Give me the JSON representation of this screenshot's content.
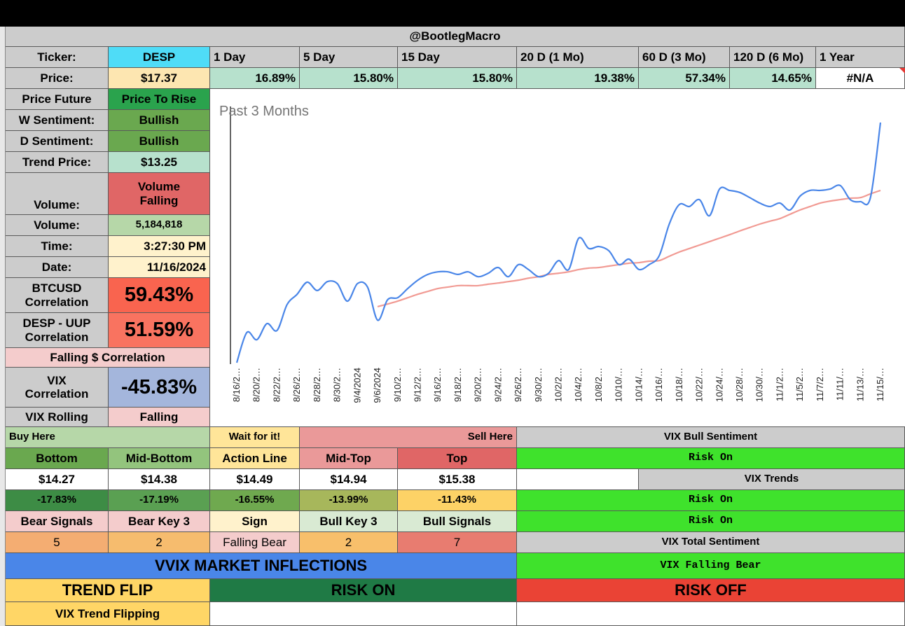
{
  "header": {
    "title": "@BootlegMacro"
  },
  "ticker": {
    "label": "Ticker:",
    "value": "DESP"
  },
  "price": {
    "label": "Price:",
    "value": "$17.37"
  },
  "periods": {
    "labels": [
      "1 Day",
      "5 Day",
      "15 Day",
      "20 D (1 Mo)",
      "60 D (3 Mo)",
      "120 D (6 Mo)",
      "1 Year"
    ],
    "values": [
      "16.89%",
      "15.80%",
      "15.80%",
      "19.38%",
      "57.34%",
      "14.65%",
      "#N/A"
    ]
  },
  "stats": [
    {
      "label": "Price Future",
      "value": "Price To Rise"
    },
    {
      "label": "W Sentiment:",
      "value": "Bullish"
    },
    {
      "label": "D Sentiment:",
      "value": "Bullish"
    },
    {
      "label": "Trend Price:",
      "value": "$13.25"
    },
    {
      "label": "Volume:",
      "value": "Volume Falling"
    },
    {
      "label": "Volume:",
      "value": "5,184,818"
    },
    {
      "label": "Time:",
      "value": "3:27:30 PM"
    },
    {
      "label": "Date:",
      "value": "11/16/2024"
    },
    {
      "label": "BTCUSD Correlation",
      "value": "59.43%"
    },
    {
      "label": "DESP - UUP Correlation",
      "value": "51.59%"
    },
    {
      "label": "Falling $ Correlation"
    },
    {
      "label": "VIX Correlation",
      "value": "-45.83%"
    },
    {
      "label": "VIX Rolling",
      "value": "Falling"
    }
  ],
  "levels": {
    "buy": "Buy Here",
    "wait": "Wait for it!",
    "sell": "Sell Here",
    "names": [
      "Bottom",
      "Mid-Bottom",
      "Action Line",
      "Mid-Top",
      "Top"
    ],
    "prices": [
      "$14.27",
      "$14.38",
      "$14.49",
      "$14.94",
      "$15.38"
    ],
    "changes": [
      "-17.83%",
      "-17.19%",
      "-16.55%",
      "-13.99%",
      "-11.43%"
    ],
    "signal_names": [
      "Bear Signals",
      "Bear Key 3",
      "Sign",
      "Bull Key 3",
      "Bull Signals"
    ],
    "signals": [
      "5",
      "2",
      "Falling Bear",
      "2",
      "7"
    ]
  },
  "vix": {
    "bull_title": "VIX Bull Sentiment",
    "bull": "Risk On",
    "trends_title": "VIX Trends",
    "trend1": "Risk On",
    "trend2": "Risk On",
    "total_title": "VIX Total Sentiment",
    "total": "VIX Falling Bear"
  },
  "inflections": {
    "title": "VVIX MARKET INFLECTIONS",
    "trend_flip": "TREND FLIP",
    "risk_on": "RISK ON",
    "risk_off": "RISK OFF",
    "status": "VIX Trend Flipping"
  },
  "chart_data": {
    "type": "line",
    "title": "Past 3 Months",
    "categories": [
      "8/16/2…",
      null,
      "8/20/2…",
      null,
      "8/22/2…",
      null,
      "8/26/2…",
      null,
      "8/28/2…",
      null,
      "8/30/2…",
      null,
      "9/4/2024",
      null,
      "9/6/2024",
      null,
      "9/10/2…",
      null,
      "9/12/2…",
      null,
      "9/16/2…",
      null,
      "9/18/2…",
      null,
      "9/20/2…",
      null,
      "9/24/2…",
      null,
      "9/26/2…",
      null,
      "9/30/2…",
      null,
      "10/2/2…",
      null,
      "10/4/2…",
      null,
      "10/8/2…",
      null,
      "10/10/…",
      null,
      "10/14/…",
      null,
      "10/16/…",
      null,
      "10/18/…",
      null,
      "10/22/…",
      null,
      "10/24/…",
      null,
      "10/28/…",
      null,
      "10/30/…",
      null,
      "11/1/2…",
      null,
      "11/5/2…",
      null,
      "11/7/2…",
      null,
      "11/11/…",
      null,
      "11/13/…",
      null,
      "11/15/…"
    ],
    "series": [
      {
        "color": "#4a86e8",
        "values": [
          9.02,
          10.07,
          9.82,
          10.38,
          10.14,
          11.04,
          11.4,
          11.82,
          11.53,
          11.84,
          11.77,
          11.16,
          11.77,
          11.65,
          10.5,
          11.21,
          11.28,
          11.6,
          11.89,
          12.09,
          12.18,
          12.18,
          12.09,
          12.18,
          12.01,
          12.13,
          12.33,
          12.01,
          12.43,
          12.26,
          12.01,
          12.13,
          12.57,
          12.26,
          13.35,
          12.99,
          13.06,
          12.91,
          12.43,
          12.62,
          12.26,
          12.43,
          12.74,
          13.84,
          14.52,
          14.45,
          14.69,
          14.13,
          15.06,
          15.01,
          14.94,
          14.76,
          14.57,
          14.45,
          14.57,
          14.33,
          14.81,
          15.01,
          15.01,
          15.06,
          15.18,
          14.69,
          14.62,
          14.76,
          17.37
        ]
      },
      {
        "color": "#f19a93",
        "values": [
          null,
          null,
          null,
          null,
          null,
          null,
          null,
          null,
          null,
          null,
          null,
          null,
          null,
          null,
          10.97,
          11.06,
          11.16,
          11.28,
          11.4,
          11.5,
          11.6,
          11.65,
          11.7,
          11.7,
          11.7,
          11.75,
          11.79,
          11.84,
          11.89,
          11.96,
          12.01,
          12.09,
          12.13,
          12.18,
          12.26,
          12.31,
          12.33,
          12.38,
          12.43,
          12.48,
          12.5,
          12.55,
          12.57,
          12.72,
          12.87,
          12.99,
          13.11,
          13.23,
          13.35,
          13.47,
          13.6,
          13.72,
          13.84,
          13.94,
          14.03,
          14.18,
          14.33,
          14.45,
          14.57,
          14.64,
          14.69,
          14.74,
          14.76,
          14.89,
          15.01
        ]
      }
    ]
  }
}
